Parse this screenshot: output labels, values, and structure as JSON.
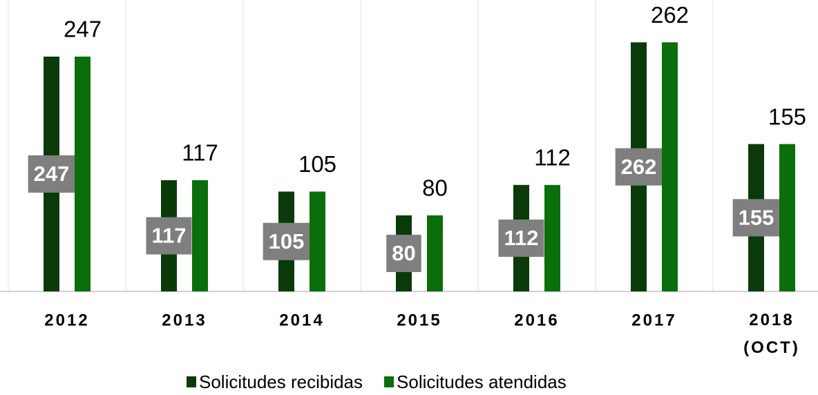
{
  "chart_data": {
    "type": "bar",
    "categories": [
      "2012",
      "2013",
      "2014",
      "2015",
      "2016",
      "2017",
      "2018 (OCT)"
    ],
    "series": [
      {
        "name": "Solicitudes recibidas",
        "color": "#0a3a0a",
        "values": [
          247,
          117,
          105,
          80,
          112,
          262,
          155
        ]
      },
      {
        "name": "Solicitudes atendidas",
        "color": "#0a6e0a",
        "values": [
          247,
          117,
          105,
          80,
          112,
          262,
          155
        ]
      }
    ],
    "ylim": [
      0,
      300
    ],
    "grid": true,
    "legend": "bottom"
  }
}
